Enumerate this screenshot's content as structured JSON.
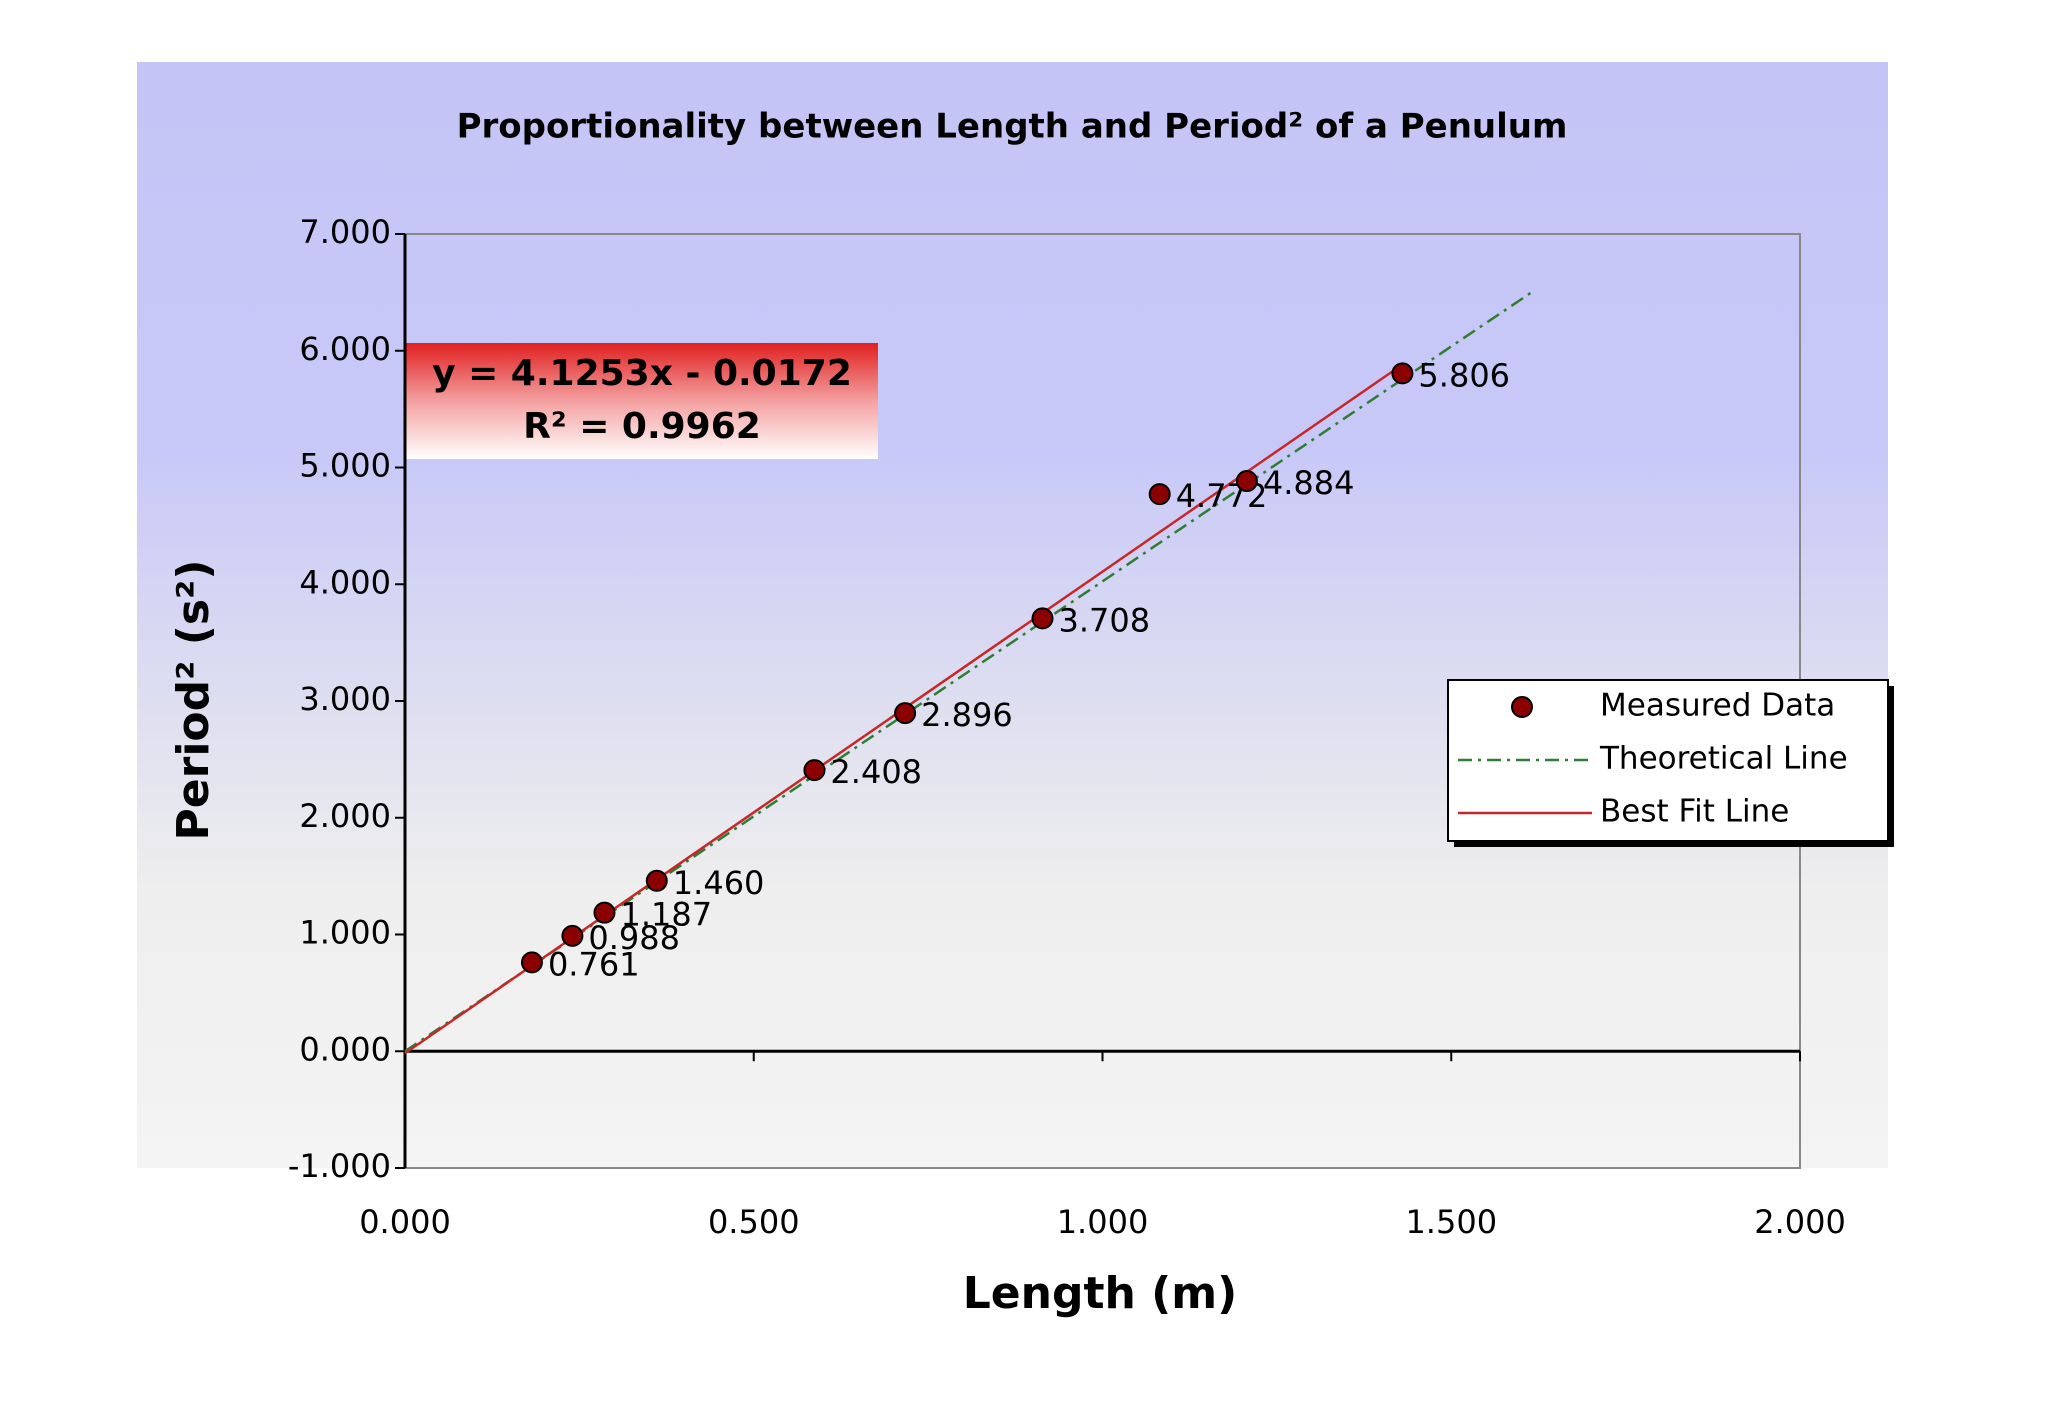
{
  "chart_data": {
    "type": "scatter",
    "title": "Proportionality between Length and Period² of a Penulum",
    "x_label": "Length (m)",
    "y_label": "Period² (s²)",
    "equation": "y = 4.1253x - 0.0172",
    "r_squared": "R² = 0.9962",
    "xlim": [
      0,
      2
    ],
    "ylim": [
      -1,
      7
    ],
    "xticks": [
      {
        "value": 0,
        "label": "0.000"
      },
      {
        "value": 0.5,
        "label": "0.500"
      },
      {
        "value": 1,
        "label": "1.000"
      },
      {
        "value": 1.5,
        "label": "1.500"
      },
      {
        "value": 2,
        "label": "2.000"
      }
    ],
    "yticks": [
      {
        "value": -1,
        "label": "-1.000"
      },
      {
        "value": 0,
        "label": "0.000"
      },
      {
        "value": 1,
        "label": "1.000"
      },
      {
        "value": 2,
        "label": "2.000"
      },
      {
        "value": 3,
        "label": "3.000"
      },
      {
        "value": 4,
        "label": "4.000"
      },
      {
        "value": 5,
        "label": "5.000"
      },
      {
        "value": 6,
        "label": "6.000"
      },
      {
        "value": 7,
        "label": "7.000"
      }
    ],
    "series": [
      {
        "name": "Measured Data",
        "kind": "points",
        "color": "#8b0000",
        "x": [
          0.182,
          0.24,
          0.286,
          0.361,
          0.587,
          0.717,
          0.914,
          1.082,
          1.207,
          1.43
        ],
        "values": [
          0.761,
          0.988,
          1.187,
          1.46,
          2.408,
          2.896,
          3.708,
          4.772,
          4.884,
          5.806
        ],
        "value_labels": [
          "0.761",
          "0.988",
          "1.187",
          "1.460",
          "2.408",
          "2.896",
          "3.708",
          "4.772",
          "4.884",
          "5.806"
        ]
      },
      {
        "name": "Theoretical Line",
        "kind": "dashed-line",
        "color": "#2e7d32",
        "x": [
          0,
          1.62
        ],
        "values": [
          0,
          6.52
        ]
      },
      {
        "name": "Best Fit Line",
        "kind": "line",
        "color": "#c62828",
        "x": [
          0,
          1.43
        ],
        "values": [
          -0.0172,
          5.882
        ]
      }
    ]
  }
}
